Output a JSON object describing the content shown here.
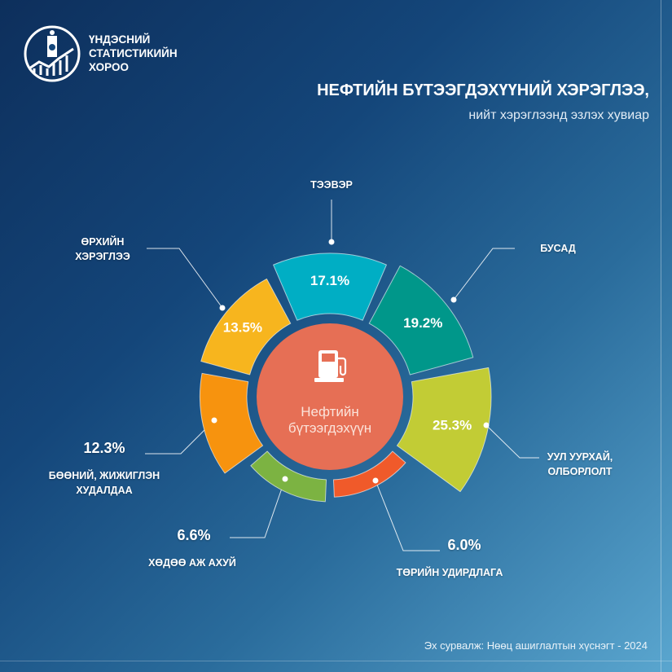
{
  "header": {
    "org_lines": [
      "ҮНДЭСНИЙ",
      "СТАТИСТИКИЙН",
      "ХОРОО"
    ],
    "title": "НЕФТИЙН БҮТЭЭГДЭХҮҮНИЙ ХЭРЭГЛЭЭ,",
    "subtitle": "нийт хэрэглээнд эзлэх хувиар"
  },
  "center": {
    "label_line1": "Нефтийн",
    "label_line2": "бүтээгдэхүүн",
    "icon": "fuel-pump-icon",
    "color": "#e66f55"
  },
  "footer": {
    "source": "Эх сурвалж: Нөөц ашиглалтын хүснэгт - 2024"
  },
  "chart_data": {
    "type": "polar-bar",
    "title": "НЕФТИЙН БҮТЭЭГДЭХҮҮНИЙ ХЭРЭГЛЭЭ, нийт хэрэглээнд эзлэх хувиар",
    "unit": "%",
    "categories": [
      "ТЭЭВЭР",
      "БУСАД",
      "УУЛ УУРХАЙ, ОЛБОРЛОЛТ",
      "ТӨРИЙН УДИРДЛАГА",
      "ХӨДӨӨ АЖ АХУЙ",
      "БӨӨНИЙ, ЖИЖИГЛЭН ХУДАЛДАА",
      "ӨРХИЙН ХЭРЭГЛЭЭ"
    ],
    "values": [
      17.1,
      19.2,
      25.3,
      6.0,
      6.6,
      12.3,
      13.5
    ],
    "labels": [
      "17.1%",
      "19.2%",
      "25.3%",
      "6.0%",
      "6.6%",
      "12.3%",
      "13.5%"
    ],
    "label_lines": [
      [
        "ТЭЭВЭР"
      ],
      [
        "БУСАД"
      ],
      [
        "УУЛ УУРХАЙ,",
        "ОЛБОРЛОЛТ"
      ],
      [
        "ТӨРИЙН УДИРДЛАГА"
      ],
      [
        "ХӨДӨӨ АЖ АХУЙ"
      ],
      [
        "БӨӨНИЙ, ЖИЖИГЛЭН",
        "ХУДАЛДАА"
      ],
      [
        "ӨРХИЙН",
        "ХЭРЭГЛЭЭ"
      ]
    ],
    "colors": [
      "#00aec4",
      "#00978a",
      "#c2cc35",
      "#f05a2a",
      "#7cb342",
      "#f7930e",
      "#f7b51e"
    ]
  }
}
